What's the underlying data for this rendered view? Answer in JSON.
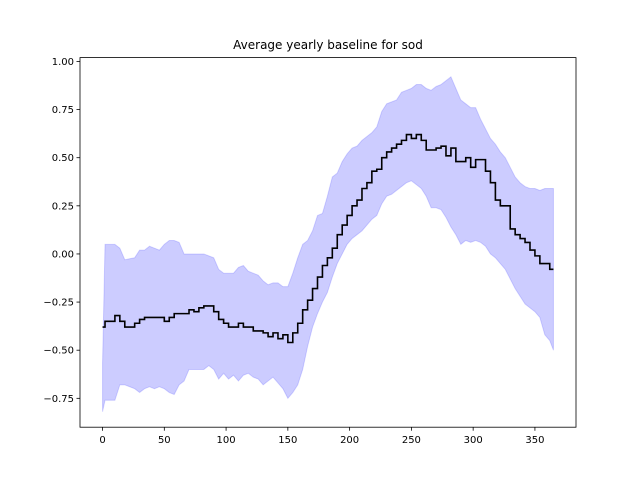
{
  "chart_data": {
    "type": "area",
    "title": "Average yearly baseline for sod",
    "xlabel": "",
    "ylabel": "",
    "xlim": [
      -18.25,
      383.25
    ],
    "ylim": [
      -0.9,
      1.02
    ],
    "xticks": [
      0,
      50,
      100,
      150,
      200,
      250,
      300,
      350
    ],
    "yticks": [
      -0.75,
      -0.5,
      -0.25,
      0.0,
      0.25,
      0.5,
      0.75,
      1.0
    ],
    "xtick_labels": [
      "0",
      "50",
      "100",
      "150",
      "200",
      "250",
      "300",
      "350"
    ],
    "ytick_labels": [
      "−0.75",
      "−0.50",
      "−0.25",
      "0.00",
      "0.25",
      "0.50",
      "0.75",
      "1.00"
    ],
    "grid": false,
    "colors": {
      "mean": "#000000",
      "band": "#0000ff",
      "band_opacity": 0.2
    },
    "mean": {
      "x": [
        0,
        2,
        8,
        10,
        14,
        18,
        26,
        30,
        34,
        38,
        42,
        46,
        50,
        54,
        58,
        62,
        66,
        70,
        74,
        78,
        82,
        86,
        90,
        94,
        98,
        102,
        106,
        110,
        114,
        118,
        122,
        126,
        130,
        134,
        138,
        142,
        146,
        150,
        154,
        158,
        162,
        166,
        170,
        174,
        178,
        182,
        186,
        190,
        194,
        198,
        202,
        206,
        210,
        214,
        218,
        222,
        226,
        230,
        234,
        238,
        242,
        246,
        250,
        254,
        258,
        262,
        266,
        270,
        274,
        278,
        282,
        286,
        290,
        294,
        298,
        302,
        306,
        310,
        314,
        318,
        322,
        326,
        330,
        334,
        338,
        342,
        346,
        350,
        354,
        358,
        362,
        365
      ],
      "y": [
        -0.38,
        -0.35,
        -0.35,
        -0.32,
        -0.35,
        -0.38,
        -0.36,
        -0.34,
        -0.33,
        -0.33,
        -0.33,
        -0.33,
        -0.35,
        -0.33,
        -0.31,
        -0.31,
        -0.31,
        -0.29,
        -0.3,
        -0.28,
        -0.27,
        -0.27,
        -0.3,
        -0.34,
        -0.36,
        -0.38,
        -0.38,
        -0.36,
        -0.38,
        -0.38,
        -0.4,
        -0.4,
        -0.41,
        -0.43,
        -0.41,
        -0.44,
        -0.42,
        -0.46,
        -0.41,
        -0.36,
        -0.29,
        -0.24,
        -0.18,
        -0.12,
        -0.06,
        -0.02,
        0.03,
        0.1,
        0.15,
        0.2,
        0.25,
        0.28,
        0.34,
        0.37,
        0.43,
        0.44,
        0.5,
        0.53,
        0.55,
        0.57,
        0.59,
        0.62,
        0.6,
        0.62,
        0.59,
        0.54,
        0.54,
        0.55,
        0.56,
        0.51,
        0.55,
        0.48,
        0.48,
        0.5,
        0.45,
        0.49,
        0.49,
        0.43,
        0.37,
        0.28,
        0.25,
        0.25,
        0.13,
        0.1,
        0.08,
        0.06,
        0.02,
        -0.01,
        -0.05,
        -0.05,
        -0.08,
        -0.08
      ]
    },
    "band": {
      "x": [
        0,
        2,
        10,
        14,
        18,
        26,
        30,
        34,
        38,
        42,
        46,
        50,
        54,
        58,
        62,
        66,
        70,
        74,
        78,
        82,
        86,
        90,
        94,
        98,
        102,
        106,
        110,
        114,
        118,
        122,
        126,
        130,
        134,
        138,
        142,
        146,
        150,
        154,
        158,
        162,
        166,
        170,
        174,
        178,
        182,
        186,
        190,
        194,
        198,
        202,
        206,
        210,
        214,
        218,
        222,
        226,
        230,
        234,
        238,
        242,
        246,
        250,
        254,
        258,
        262,
        266,
        270,
        274,
        278,
        282,
        286,
        290,
        294,
        298,
        302,
        306,
        310,
        314,
        318,
        322,
        326,
        330,
        334,
        338,
        342,
        346,
        350,
        354,
        358,
        362,
        365
      ],
      "upper": [
        -0.57,
        0.05,
        0.05,
        0.03,
        -0.03,
        -0.02,
        0.02,
        0.02,
        0.04,
        0.03,
        0.02,
        0.05,
        0.07,
        0.07,
        0.06,
        0.0,
        0.0,
        0.0,
        0.0,
        0.0,
        -0.01,
        -0.02,
        -0.08,
        -0.1,
        -0.1,
        -0.1,
        -0.07,
        -0.06,
        -0.09,
        -0.1,
        -0.11,
        -0.14,
        -0.16,
        -0.15,
        -0.15,
        -0.17,
        -0.17,
        -0.1,
        -0.02,
        0.05,
        0.07,
        0.12,
        0.2,
        0.21,
        0.3,
        0.4,
        0.42,
        0.48,
        0.52,
        0.55,
        0.56,
        0.59,
        0.61,
        0.63,
        0.66,
        0.74,
        0.78,
        0.79,
        0.8,
        0.84,
        0.85,
        0.86,
        0.88,
        0.88,
        0.86,
        0.85,
        0.87,
        0.88,
        0.9,
        0.92,
        0.86,
        0.8,
        0.78,
        0.76,
        0.76,
        0.7,
        0.65,
        0.6,
        0.57,
        0.53,
        0.5,
        0.45,
        0.4,
        0.37,
        0.35,
        0.34,
        0.34,
        0.33,
        0.34,
        0.34,
        0.34
      ],
      "lower": [
        -0.82,
        -0.76,
        -0.76,
        -0.68,
        -0.68,
        -0.7,
        -0.72,
        -0.7,
        -0.69,
        -0.7,
        -0.69,
        -0.7,
        -0.72,
        -0.73,
        -0.68,
        -0.66,
        -0.6,
        -0.6,
        -0.6,
        -0.6,
        -0.58,
        -0.6,
        -0.65,
        -0.62,
        -0.65,
        -0.63,
        -0.66,
        -0.63,
        -0.62,
        -0.64,
        -0.65,
        -0.68,
        -0.66,
        -0.64,
        -0.67,
        -0.7,
        -0.75,
        -0.72,
        -0.68,
        -0.6,
        -0.48,
        -0.38,
        -0.31,
        -0.25,
        -0.2,
        -0.12,
        -0.05,
        0.0,
        0.05,
        0.08,
        0.1,
        0.12,
        0.15,
        0.18,
        0.2,
        0.26,
        0.3,
        0.31,
        0.33,
        0.35,
        0.37,
        0.38,
        0.36,
        0.34,
        0.3,
        0.24,
        0.24,
        0.23,
        0.19,
        0.14,
        0.1,
        0.05,
        0.07,
        0.06,
        0.07,
        0.06,
        0.04,
        0.0,
        -0.02,
        -0.05,
        -0.08,
        -0.13,
        -0.18,
        -0.22,
        -0.26,
        -0.28,
        -0.3,
        -0.33,
        -0.42,
        -0.45,
        -0.5
      ]
    }
  }
}
